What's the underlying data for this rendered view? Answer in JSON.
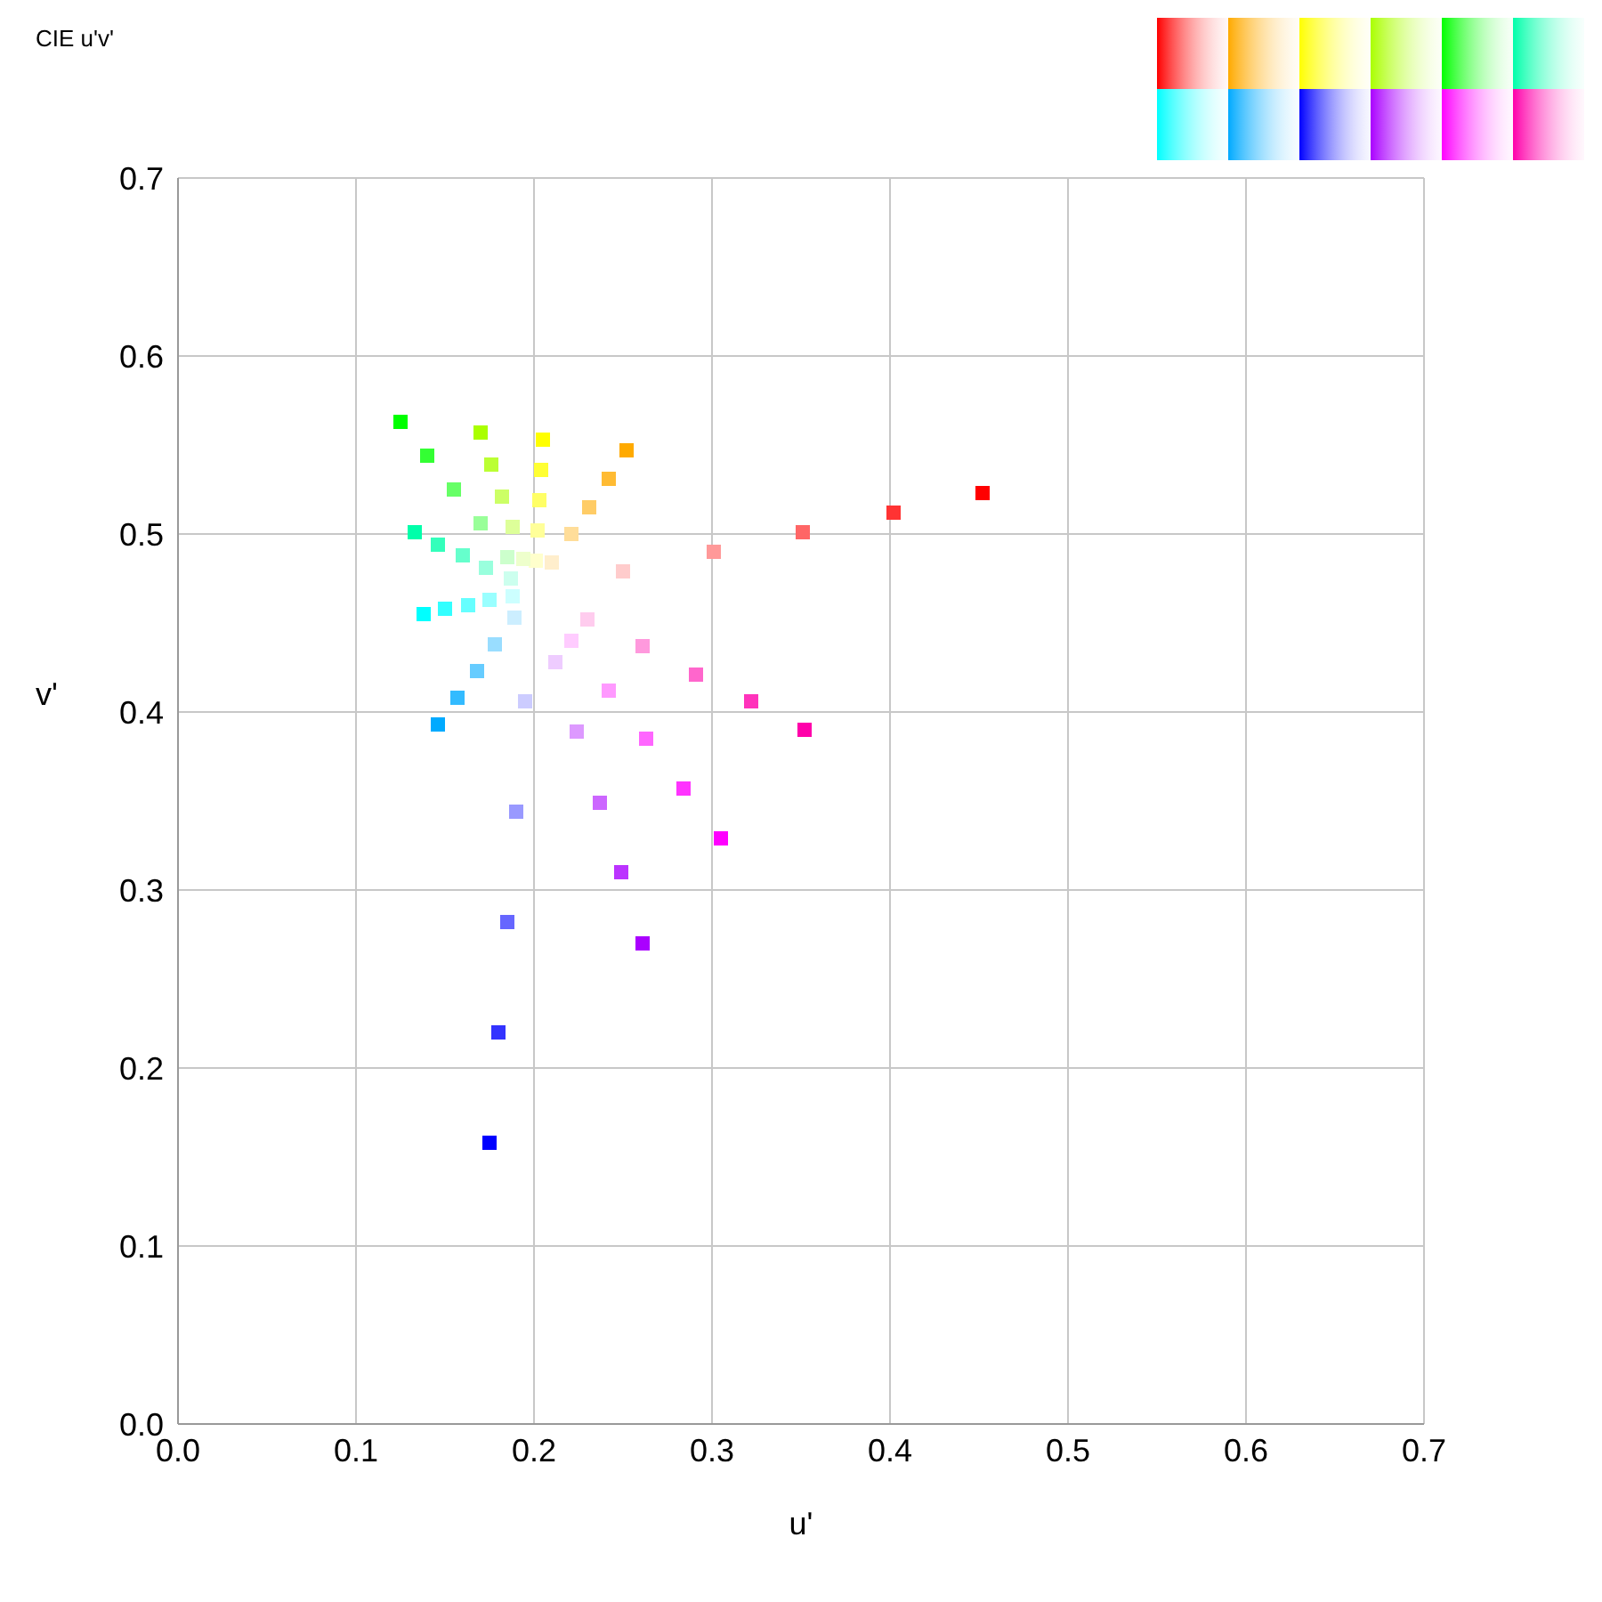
{
  "chart_data": {
    "type": "scatter",
    "title": "CIE u'v'",
    "xlabel": "u'",
    "ylabel": "v'",
    "xlim": [
      0,
      0.7
    ],
    "ylim": [
      0,
      0.7
    ],
    "xticks": [
      {
        "value": 0,
        "label": "0.0"
      },
      {
        "value": 0.1,
        "label": "0.1"
      },
      {
        "value": 0.2,
        "label": "0.2"
      },
      {
        "value": 0.3,
        "label": "0.3"
      },
      {
        "value": 0.4,
        "label": "0.4"
      },
      {
        "value": 0.5,
        "label": "0.5"
      },
      {
        "value": 0.6,
        "label": "0.6"
      },
      {
        "value": 0.7,
        "label": "0.7"
      }
    ],
    "yticks": [
      {
        "value": 0,
        "label": "0.0"
      },
      {
        "value": 0.1,
        "label": "0.1"
      },
      {
        "value": 0.2,
        "label": "0.2"
      },
      {
        "value": 0.3,
        "label": "0.3"
      },
      {
        "value": 0.4,
        "label": "0.4"
      },
      {
        "value": 0.5,
        "label": "0.5"
      },
      {
        "value": 0.6,
        "label": "0.6"
      },
      {
        "value": 0.7,
        "label": "0.7"
      }
    ],
    "grid": true,
    "marker": "square",
    "series": [
      {
        "x": [
          0.25,
          0.301,
          0.351,
          0.402,
          0.452
        ],
        "values": [
          0.479,
          0.49,
          0.501,
          0.512,
          0.523
        ],
        "colors": [
          "#ffcccc",
          "#ff9999",
          "#ff6666",
          "#ff3333",
          "#ff0000"
        ]
      },
      {
        "x": [
          0.21,
          0.221,
          0.231,
          0.242,
          0.252
        ],
        "values": [
          0.484,
          0.5,
          0.515,
          0.531,
          0.547
        ],
        "colors": [
          "#ffeecc",
          "#ffdd99",
          "#ffcc66",
          "#ffbb33",
          "#ffaa00"
        ]
      },
      {
        "x": [
          0.201,
          0.202,
          0.203,
          0.204,
          0.205
        ],
        "values": [
          0.485,
          0.502,
          0.519,
          0.536,
          0.553
        ],
        "colors": [
          "#ffffcc",
          "#ffff99",
          "#ffff66",
          "#ffff33",
          "#ffff00"
        ]
      },
      {
        "x": [
          0.194,
          0.188,
          0.182,
          0.176,
          0.17
        ],
        "values": [
          0.486,
          0.504,
          0.521,
          0.539,
          0.557
        ],
        "colors": [
          "#eeffcc",
          "#ddff99",
          "#ccff66",
          "#bbff33",
          "#aaff00"
        ]
      },
      {
        "x": [
          0.185,
          0.17,
          0.155,
          0.14,
          0.125
        ],
        "values": [
          0.487,
          0.506,
          0.525,
          0.544,
          0.563
        ],
        "colors": [
          "#ccffcc",
          "#99ff99",
          "#66ff66",
          "#33ff33",
          "#00ff00"
        ]
      },
      {
        "x": [
          0.187,
          0.173,
          0.16,
          0.146,
          0.133
        ],
        "values": [
          0.475,
          0.481,
          0.488,
          0.494,
          0.501
        ],
        "colors": [
          "#ccffee",
          "#99ffdd",
          "#66ffcc",
          "#33ffbb",
          "#00ffaa"
        ]
      },
      {
        "x": [
          0.188,
          0.175,
          0.163,
          0.15,
          0.138
        ],
        "values": [
          0.465,
          0.463,
          0.46,
          0.458,
          0.455
        ],
        "colors": [
          "#ccffff",
          "#99ffff",
          "#66ffff",
          "#33ffff",
          "#00ffff"
        ]
      },
      {
        "x": [
          0.189,
          0.178,
          0.168,
          0.157,
          0.146
        ],
        "values": [
          0.453,
          0.438,
          0.423,
          0.408,
          0.393
        ],
        "colors": [
          "#cceeff",
          "#99ddff",
          "#66ccff",
          "#33bbff",
          "#00aaff"
        ]
      },
      {
        "x": [
          0.195,
          0.19,
          0.185,
          0.18,
          0.175
        ],
        "values": [
          0.406,
          0.344,
          0.282,
          0.22,
          0.158
        ],
        "colors": [
          "#ccccff",
          "#9999ff",
          "#6666ff",
          "#3333ff",
          "#0000ff"
        ]
      },
      {
        "x": [
          0.212,
          0.224,
          0.237,
          0.249,
          0.261
        ],
        "values": [
          0.428,
          0.389,
          0.349,
          0.31,
          0.27
        ],
        "colors": [
          "#eeccff",
          "#dd99ff",
          "#cc66ff",
          "#bb33ff",
          "#aa00ff"
        ]
      },
      {
        "x": [
          0.221,
          0.242,
          0.263,
          0.284,
          0.305
        ],
        "values": [
          0.44,
          0.412,
          0.385,
          0.357,
          0.329
        ],
        "colors": [
          "#ffccff",
          "#ff99ff",
          "#ff66ff",
          "#ff33ff",
          "#ff00ff"
        ]
      },
      {
        "x": [
          0.23,
          0.261,
          0.291,
          0.322,
          0.352
        ],
        "values": [
          0.452,
          0.437,
          0.421,
          0.406,
          0.39
        ],
        "colors": [
          "#ffccee",
          "#ff99dd",
          "#ff66cc",
          "#ff33bb",
          "#ff00aa"
        ]
      }
    ]
  }
}
